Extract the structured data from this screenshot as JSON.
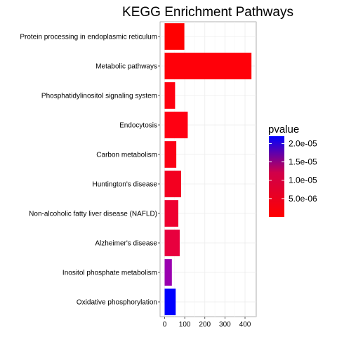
{
  "chart_data": {
    "type": "bar",
    "orientation": "horizontal",
    "title": "KEGG Enrichment Pathways",
    "xlabel": "",
    "ylabel": "",
    "xlim": [
      0,
      450
    ],
    "x_ticks": [
      "0",
      "100",
      "200",
      "300",
      "400"
    ],
    "x_tick_values": [
      0,
      100,
      200,
      300,
      400
    ],
    "grid": true,
    "color_scale": {
      "name": "pvalue",
      "low_color": "#ff0000",
      "high_color": "#0000ff",
      "min": 0,
      "max": 2.2e-05,
      "ticks": [
        "2.0e-05",
        "1.5e-05",
        "1.0e-05",
        "5.0e-06"
      ],
      "tick_values": [
        2e-05,
        1.5e-05,
        1e-05,
        5e-06
      ],
      "position": "right"
    },
    "categories": [
      "Protein processing in endoplasmic reticulum",
      "Metabolic pathways",
      "Phosphatidylinositol signaling system",
      "Endocytosis",
      "Carbon metabolism",
      "Huntington's disease",
      "Non-alcoholic fatty liver disease (NAFLD)",
      "Alzheimer's disease",
      "Inositol phosphate metabolism",
      "Oxidative phosphorylation"
    ],
    "values": [
      98,
      432,
      52,
      115,
      58,
      82,
      68,
      75,
      36,
      55
    ],
    "colors": [
      "#ff0000",
      "#ff0009",
      "#ff0010",
      "#ff0012",
      "#fb0015",
      "#f30020",
      "#ee0030",
      "#e8003e",
      "#9a00b0",
      "#0000ff"
    ]
  }
}
